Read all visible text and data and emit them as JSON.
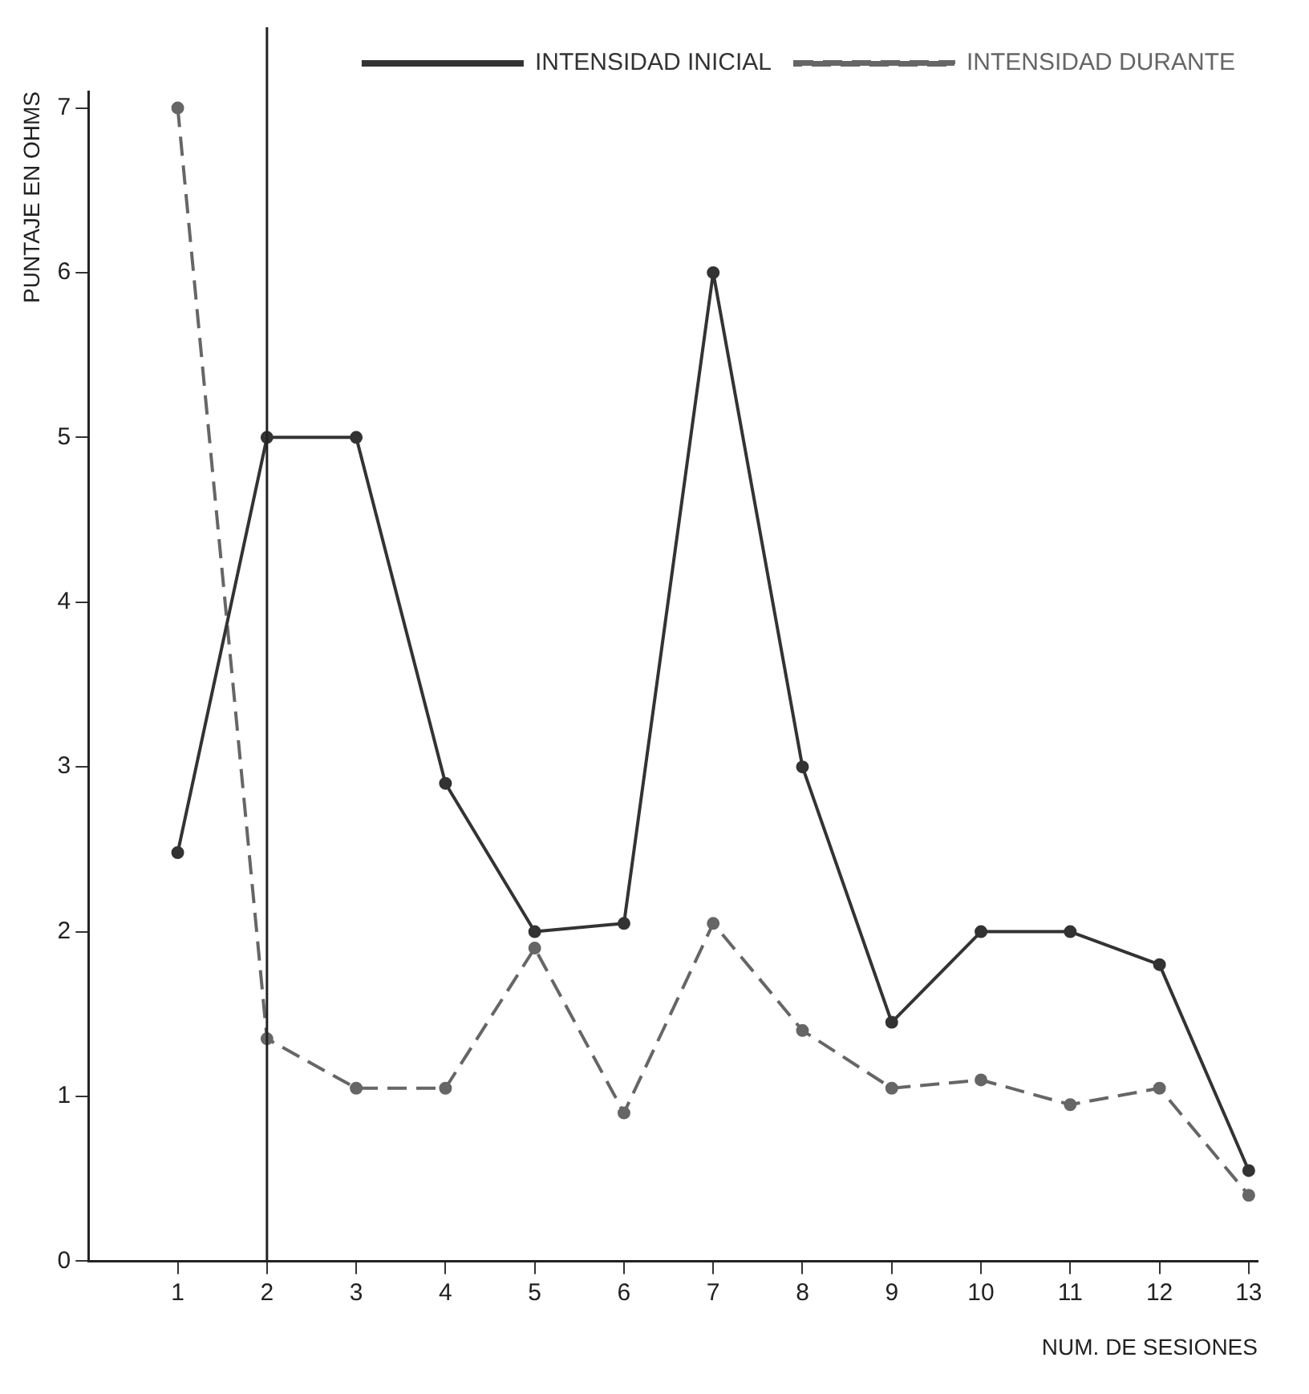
{
  "chart_data": {
    "type": "line",
    "xlabel": "NUM. DE SESIONES",
    "ylabel": "PUNTAJE EN OHMS",
    "x": [
      1,
      2,
      3,
      4,
      5,
      6,
      7,
      8,
      9,
      10,
      11,
      12,
      13
    ],
    "series": [
      {
        "name": "INTENSIDAD INICIAL",
        "color": "#333333",
        "line_style": "solid",
        "values": [
          2.48,
          5.0,
          5.0,
          2.9,
          2.0,
          2.05,
          6.0,
          3.0,
          1.45,
          2.0,
          2.0,
          1.8,
          0.55
        ]
      },
      {
        "name": "INTENSIDAD DURANTE",
        "color": "#666666",
        "line_style": "dashed",
        "values": [
          7.0,
          1.35,
          1.05,
          1.05,
          1.9,
          0.9,
          2.05,
          1.4,
          1.05,
          1.1,
          0.95,
          1.05,
          0.4
        ]
      }
    ],
    "xlim": [
      0,
      13.1
    ],
    "xticks": [
      1,
      2,
      3,
      4,
      5,
      6,
      7,
      8,
      9,
      10,
      11,
      12,
      13
    ],
    "ylim": [
      0,
      7.1
    ],
    "yticks": [
      0,
      1,
      2,
      3,
      4,
      5,
      6,
      7
    ],
    "ref_lines": [
      {
        "axis": "x",
        "value": 2,
        "color": "#222222"
      }
    ],
    "grid": false,
    "legend": "top right",
    "marker": "circle"
  }
}
